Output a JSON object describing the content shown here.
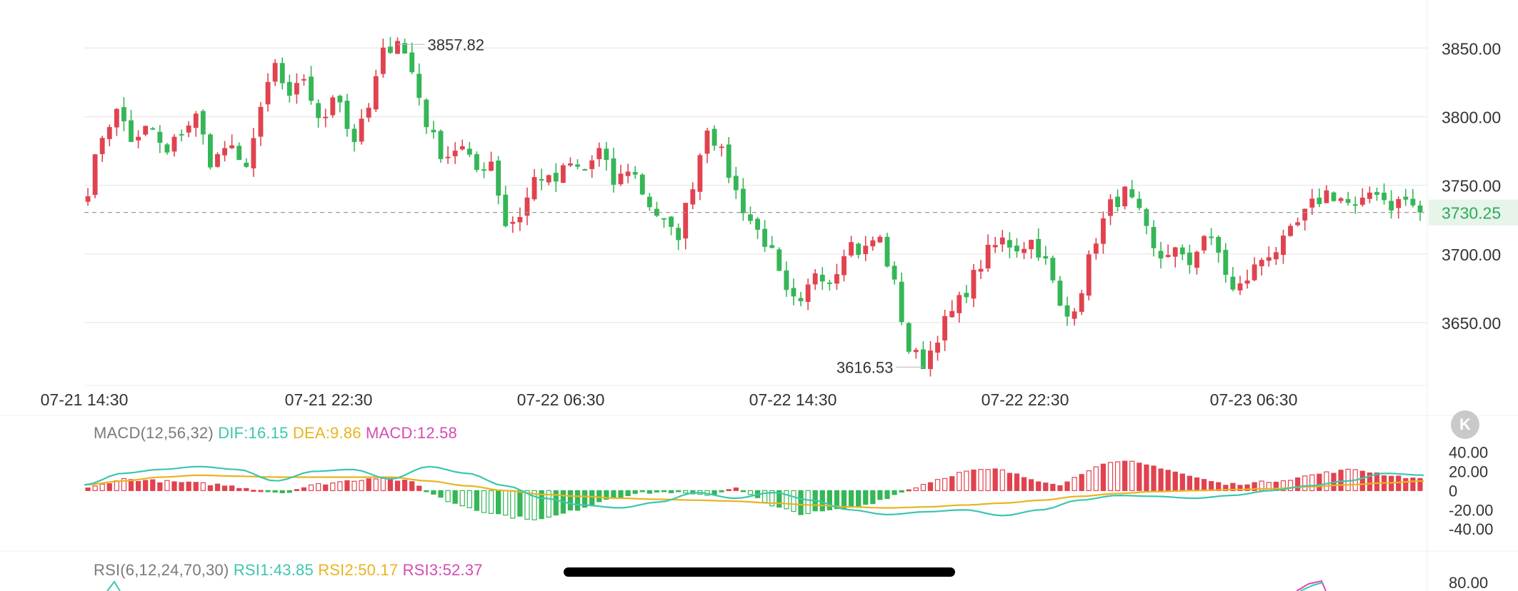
{
  "colors": {
    "up": "#e0434f",
    "down": "#35b657",
    "dif": "#3cc6b0",
    "dea": "#e9b41f",
    "macd": "#d54bb4",
    "rsi1": "#3cc6b0",
    "rsi2": "#e9b41f",
    "rsi3": "#d54bb4",
    "grid": "#ececec",
    "axis_text": "#333333",
    "last_price": "#2faa5a",
    "last_price_bg": "#e6f4ea"
  },
  "legends": {
    "macd": {
      "name": "MACD(12,56,32)",
      "dif": "DIF:16.15",
      "dea": "DEA:9.86",
      "macd": "MACD:12.58"
    },
    "rsi": {
      "name": "RSI(6,12,24,70,30)",
      "rsi1": "RSI1:43.85",
      "rsi2": "RSI2:50.17",
      "rsi3": "RSI3:52.37"
    }
  },
  "k_button": "K",
  "chart_data": [
    {
      "type": "candlestick",
      "title": "",
      "ylim": [
        3612,
        3872
      ],
      "yticks": [
        3650,
        3700,
        3750,
        3800,
        3850
      ],
      "ytick_labels": [
        "3650.00",
        "3700.00",
        "3750.00",
        "3800.00",
        "3850.00"
      ],
      "xtick_labels": [
        "07-21 14:30",
        "07-21 22:30",
        "07-22 06:30",
        "07-22 14:30",
        "07-22 22:30",
        "07-23 06:30"
      ],
      "grid": true,
      "last_price": 3730.25,
      "last_price_label": "3730.25",
      "high_marker": {
        "value": 3857.82,
        "label": "3857.82"
      },
      "low_marker": {
        "value": 3616.53,
        "label": "3616.53"
      },
      "key_points": [
        3748,
        3790,
        3805,
        3778,
        3795,
        3770,
        3790,
        3800,
        3765,
        3780,
        3760,
        3795,
        3840,
        3810,
        3830,
        3790,
        3825,
        3780,
        3800,
        3845,
        3858,
        3830,
        3790,
        3770,
        3780,
        3760,
        3770,
        3720,
        3730,
        3760,
        3750,
        3765,
        3760,
        3775,
        3750,
        3765,
        3740,
        3725,
        3710,
        3750,
        3795,
        3770,
        3740,
        3720,
        3705,
        3670,
        3660,
        3690,
        3680,
        3710,
        3700,
        3715,
        3680,
        3630,
        3620,
        3645,
        3660,
        3680,
        3700,
        3710,
        3705,
        3710,
        3690,
        3650,
        3670,
        3710,
        3735,
        3745,
        3725,
        3695,
        3705,
        3690,
        3715,
        3700,
        3670,
        3685,
        3700,
        3705,
        3720,
        3735,
        3745,
        3740,
        3730,
        3750,
        3735,
        3740,
        3730
      ]
    },
    {
      "type": "macd",
      "params": "MACD(12,56,32)",
      "ylim": [
        -48,
        50
      ],
      "yticks": [
        40,
        20,
        0,
        -20,
        -40
      ],
      "ytick_labels": [
        "40.00",
        "20.00",
        "0",
        "-20.00",
        "-40.00"
      ],
      "dif": 16.15,
      "dea": 9.86,
      "macd": 12.58,
      "dif_points": [
        6,
        18,
        22,
        25,
        22,
        10,
        20,
        22,
        12,
        25,
        18,
        5,
        -8,
        -15,
        -18,
        -12,
        -2,
        -8,
        -2,
        -10,
        -20,
        -25,
        -22,
        -20,
        -26,
        -20,
        -10,
        -5,
        -6,
        -8,
        -5,
        0,
        5,
        10,
        18,
        16
      ],
      "dea_points": [
        6,
        10,
        14,
        16,
        15,
        14,
        14,
        14,
        14,
        10,
        5,
        0,
        -4,
        -6,
        -8,
        -9,
        -10,
        -11,
        -13,
        -15,
        -17,
        -18,
        -17,
        -15,
        -13,
        -10,
        -6,
        -3,
        -1,
        0,
        1,
        2,
        4,
        6,
        8,
        10
      ],
      "histogram_points": [
        2,
        12,
        10,
        8,
        6,
        2,
        -2,
        6,
        10,
        14,
        8,
        -10,
        -20,
        -27,
        -30,
        -20,
        -8,
        -2,
        -1,
        -6,
        4,
        -16,
        -24,
        -20,
        -14,
        -2,
        10,
        20,
        22,
        12,
        6,
        26,
        30,
        24,
        14,
        6,
        8,
        12,
        18,
        22,
        16,
        12
      ]
    },
    {
      "type": "rsi",
      "params": "RSI(6,12,24,70,30)",
      "rsi1": 43.85,
      "rsi2": 50.17,
      "rsi3": 52.37,
      "ytick_labels": [
        "80.00"
      ]
    }
  ]
}
